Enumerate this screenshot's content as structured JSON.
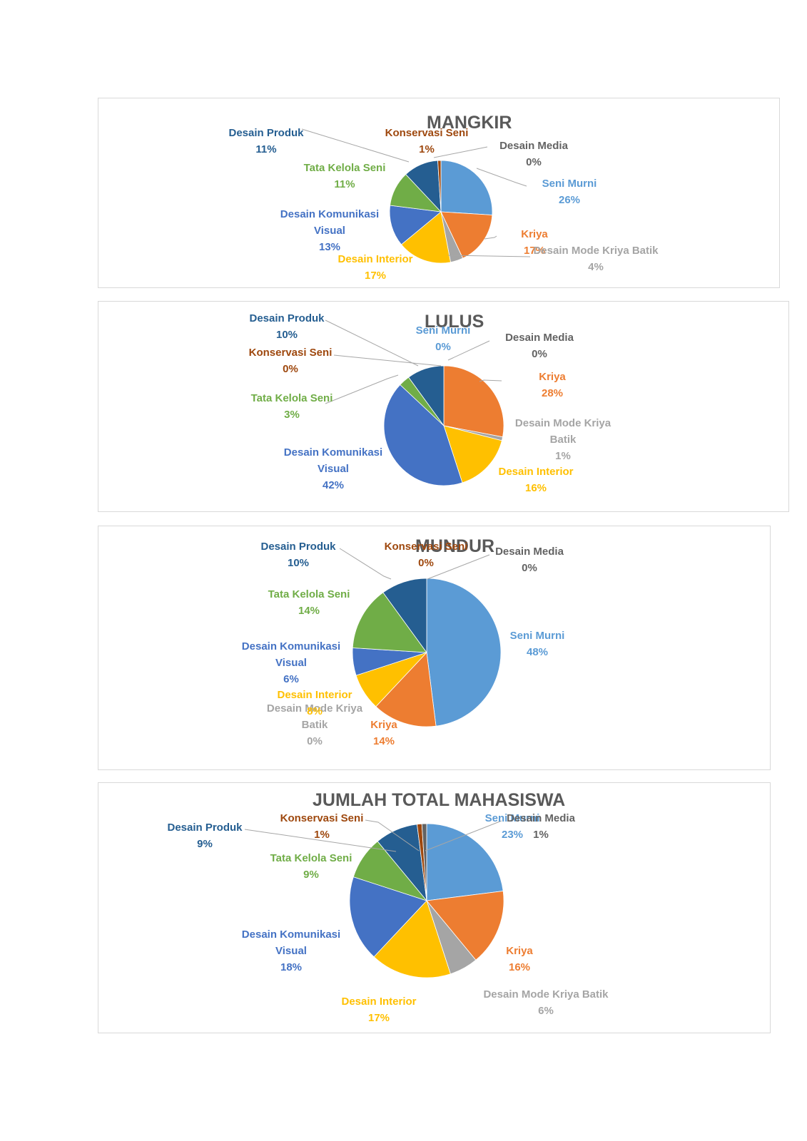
{
  "colors": {
    "Seni Murni": "#5b9bd5",
    "Kriya": "#ed7d31",
    "Desain Mode Kriya Batik": "#a5a5a5",
    "Desain Interior": "#ffc000",
    "Desain Komunikasi Visual": "#4472c4",
    "Tata Kelola Seni": "#70ad47",
    "Desain Produk": "#255e91",
    "Konservasi Seni": "#9e480e",
    "Desain Media": "#636363"
  },
  "chart_data": [
    {
      "type": "pie",
      "title": "MANGKIR",
      "categories": [
        "Seni Murni",
        "Kriya",
        "Desain Mode Kriya Batik",
        "Desain Interior",
        "Desain Komunikasi Visual",
        "Tata Kelola Seni",
        "Desain Produk",
        "Konservasi Seni",
        "Desain Media"
      ],
      "values": [
        26,
        17,
        4,
        17,
        13,
        11,
        11,
        1,
        0
      ],
      "labels": [
        {
          "lines": [
            "Seni Murni",
            "26%"
          ]
        },
        {
          "lines": [
            "Kriya",
            "17%"
          ]
        },
        {
          "lines": [
            "Desain Mode Kriya Batik",
            "4%"
          ]
        },
        {
          "lines": [
            "Desain Interior",
            "17%"
          ]
        },
        {
          "lines": [
            "Desain Komunikasi",
            "Visual",
            "13%"
          ]
        },
        {
          "lines": [
            "Tata Kelola Seni",
            "11%"
          ]
        },
        {
          "lines": [
            "Desain Produk",
            "11%"
          ]
        },
        {
          "lines": [
            "Konservasi Seni",
            "1%"
          ]
        },
        {
          "lines": [
            "Desain Media",
            "0%"
          ]
        }
      ]
    },
    {
      "type": "pie",
      "title": "LULUS",
      "categories": [
        "Seni Murni",
        "Kriya",
        "Desain Mode Kriya Batik",
        "Desain Interior",
        "Desain Komunikasi Visual",
        "Tata Kelola Seni",
        "Desain Produk",
        "Konservasi Seni",
        "Desain Media"
      ],
      "values": [
        0,
        28,
        1,
        16,
        42,
        3,
        10,
        0,
        0
      ],
      "labels": [
        {
          "lines": [
            "Seni Murni",
            "0%"
          ]
        },
        {
          "lines": [
            "Kriya",
            "28%"
          ]
        },
        {
          "lines": [
            "Desain Mode Kriya",
            "Batik",
            "1%"
          ]
        },
        {
          "lines": [
            "Desain Interior",
            "16%"
          ]
        },
        {
          "lines": [
            "Desain Komunikasi",
            "Visual",
            "42%"
          ]
        },
        {
          "lines": [
            "Tata Kelola Seni",
            "3%"
          ]
        },
        {
          "lines": [
            "Desain Produk",
            "10%"
          ]
        },
        {
          "lines": [
            "Konservasi Seni",
            "0%"
          ]
        },
        {
          "lines": [
            "Desain Media",
            "0%"
          ]
        }
      ]
    },
    {
      "type": "pie",
      "title": "MUNDUR",
      "categories": [
        "Seni Murni",
        "Kriya",
        "Desain Mode Kriya Batik",
        "Desain Interior",
        "Desain Komunikasi Visual",
        "Tata Kelola Seni",
        "Desain Produk",
        "Konservasi Seni",
        "Desain Media"
      ],
      "values": [
        48,
        14,
        0,
        8,
        6,
        14,
        10,
        0,
        0
      ],
      "labels": [
        {
          "lines": [
            "Seni Murni",
            "48%"
          ]
        },
        {
          "lines": [
            "Kriya",
            "14%"
          ]
        },
        {
          "lines": [
            "Desain Mode Kriya",
            "Batik",
            "0%"
          ]
        },
        {
          "lines": [
            "Desain Interior",
            "8%"
          ]
        },
        {
          "lines": [
            "Desain Komunikasi",
            "Visual",
            "6%"
          ]
        },
        {
          "lines": [
            "Tata Kelola Seni",
            "14%"
          ]
        },
        {
          "lines": [
            "Desain Produk",
            "10%"
          ]
        },
        {
          "lines": [
            "Konservasi Seni",
            "0%"
          ]
        },
        {
          "lines": [
            "Desain Media",
            "0%"
          ]
        }
      ]
    },
    {
      "type": "pie",
      "title": "JUMLAH TOTAL MAHASISWA",
      "categories": [
        "Seni Murni",
        "Kriya",
        "Desain Mode Kriya Batik",
        "Desain Interior",
        "Desain Komunikasi Visual",
        "Tata Kelola Seni",
        "Desain Produk",
        "Konservasi Seni",
        "Desain Media"
      ],
      "values": [
        23,
        16,
        6,
        17,
        18,
        9,
        9,
        1,
        1
      ],
      "labels": [
        {
          "lines": [
            "Seni Murni",
            "23%"
          ]
        },
        {
          "lines": [
            "Kriya",
            "16%"
          ]
        },
        {
          "lines": [
            "Desain Mode Kriya Batik",
            "6%"
          ]
        },
        {
          "lines": [
            "Desain Interior",
            "17%"
          ]
        },
        {
          "lines": [
            "Desain Komunikasi",
            "Visual",
            "18%"
          ]
        },
        {
          "lines": [
            "Tata Kelola Seni",
            "9%"
          ]
        },
        {
          "lines": [
            "Desain Produk",
            "9%"
          ]
        },
        {
          "lines": [
            "Konservasi Seni",
            "1%"
          ]
        },
        {
          "lines": [
            "Desain Media",
            "1%"
          ]
        }
      ]
    }
  ]
}
